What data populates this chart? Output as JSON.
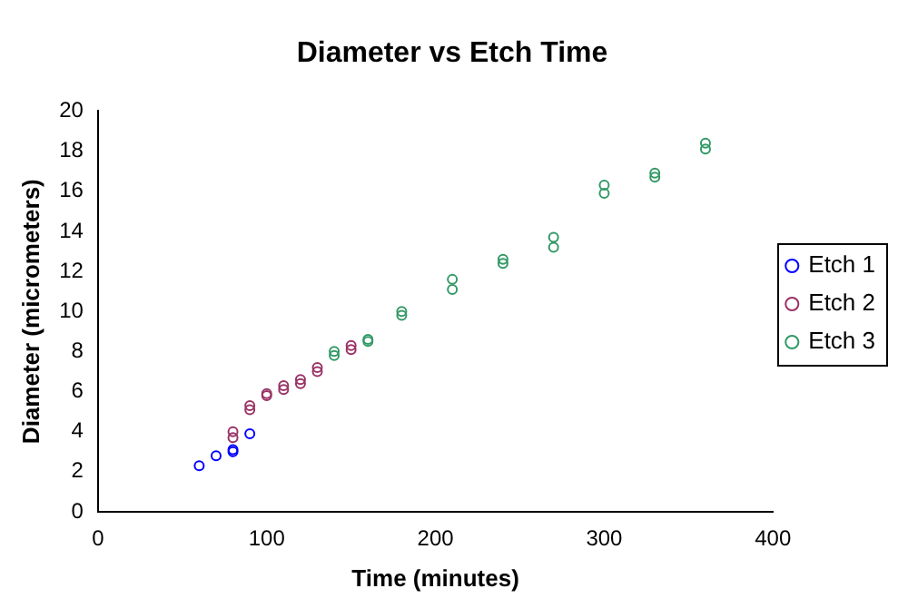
{
  "chart_data": {
    "type": "scatter",
    "title": "Diameter vs Etch Time",
    "xlabel": "Time (minutes)",
    "ylabel": "Diameter (micrometers)",
    "xlim": [
      0,
      400
    ],
    "xticks": [
      0,
      100,
      200,
      300,
      400
    ],
    "ylim": [
      0,
      20
    ],
    "yticks": [
      0,
      2,
      4,
      6,
      8,
      10,
      12,
      14,
      16,
      18,
      20
    ],
    "grid": false,
    "legend": "right",
    "marker": "circle",
    "series": [
      {
        "name": "Etch 1",
        "color": "#0000ff",
        "x": [
          60,
          70,
          80,
          80,
          90
        ],
        "values": [
          2.3,
          2.8,
          3.0,
          3.1,
          3.9
        ]
      },
      {
        "name": "Etch 2",
        "color": "#993366",
        "x": [
          80,
          80,
          90,
          90,
          100,
          100,
          110,
          110,
          120,
          120,
          130,
          130,
          150,
          150
        ],
        "values": [
          3.7,
          4.0,
          5.1,
          5.3,
          5.8,
          5.9,
          6.1,
          6.3,
          6.4,
          6.6,
          7.0,
          7.2,
          8.1,
          8.3
        ]
      },
      {
        "name": "Etch 3",
        "color": "#339966",
        "x": [
          140,
          140,
          160,
          160,
          180,
          180,
          210,
          210,
          240,
          240,
          270,
          270,
          300,
          300,
          330,
          330,
          360,
          360
        ],
        "values": [
          7.8,
          8.0,
          8.5,
          8.6,
          9.8,
          10.0,
          11.1,
          11.6,
          12.4,
          12.6,
          13.2,
          13.7,
          15.9,
          16.3,
          16.7,
          16.9,
          18.1,
          18.4
        ]
      }
    ]
  }
}
